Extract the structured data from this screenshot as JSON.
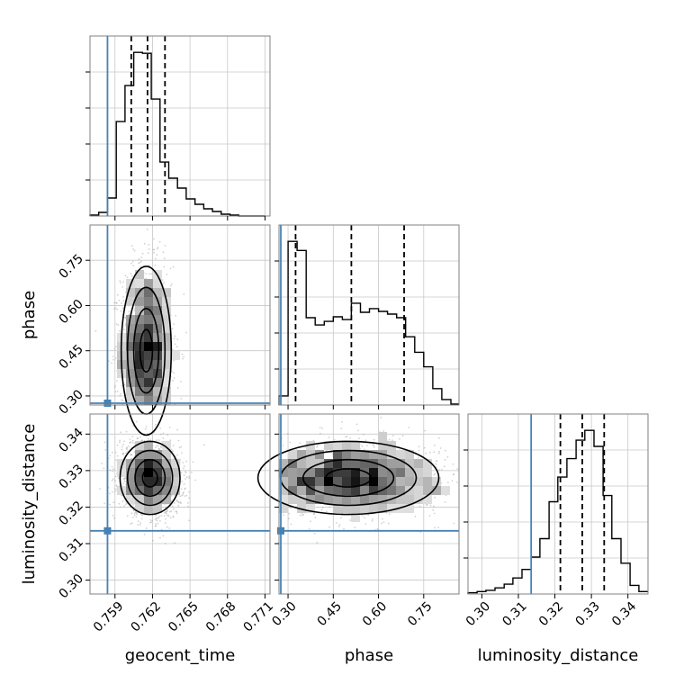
{
  "chart_data": {
    "type": "corner",
    "title": "",
    "parameters": [
      "geocent_time",
      "phase",
      "luminosity_distance"
    ],
    "axis_labels": {
      "x": [
        "geocent_time",
        "phase",
        "luminosity_distance"
      ],
      "y": [
        "phase",
        "luminosity_distance"
      ]
    },
    "ranges": {
      "geocent_time": [
        0.757,
        0.7714
      ],
      "phase": [
        0.27,
        0.867
      ],
      "luminosity_distance": [
        0.2962,
        0.3455
      ]
    },
    "ticks": {
      "geocent_time": [
        "0.759",
        "0.762",
        "0.765",
        "0.768",
        "0.771"
      ],
      "phase": [
        "0.30",
        "0.45",
        "0.60",
        "0.75"
      ],
      "luminosity_distance": [
        "0.30",
        "0.31",
        "0.32",
        "0.33",
        "0.34"
      ]
    },
    "tick_values": {
      "geocent_time": [
        0.759,
        0.762,
        0.765,
        0.768,
        0.771
      ],
      "phase": [
        0.3,
        0.45,
        0.6,
        0.75
      ],
      "luminosity_distance": [
        0.3,
        0.31,
        0.32,
        0.33,
        0.34
      ]
    },
    "truths": {
      "geocent_time": 0.7584,
      "phase": 0.276,
      "luminosity_distance": 0.3135
    },
    "quantiles": {
      "geocent_time": [
        0.7603,
        0.7616,
        0.763
      ],
      "phase": [
        0.325,
        0.51,
        0.685
      ],
      "luminosity_distance": [
        0.3215,
        0.3275,
        0.3335
      ]
    },
    "histograms": {
      "geocent_time": {
        "edges": [
          0.757,
          0.7577,
          0.7584,
          0.7591,
          0.7598,
          0.7605,
          0.7612,
          0.7619,
          0.7626,
          0.7633,
          0.764,
          0.7647,
          0.7654,
          0.7661,
          0.7668,
          0.7675,
          0.7682,
          0.7689,
          0.7696,
          0.7703,
          0.771
        ],
        "counts": [
          1,
          4,
          20,
          105,
          145,
          182,
          181,
          130,
          60,
          42,
          31,
          19,
          13,
          8,
          5,
          2,
          1,
          0,
          0,
          0
        ]
      },
      "phase": {
        "edges": [
          0.27,
          0.3,
          0.33,
          0.36,
          0.39,
          0.42,
          0.45,
          0.48,
          0.51,
          0.54,
          0.57,
          0.6,
          0.63,
          0.66,
          0.69,
          0.72,
          0.75,
          0.78,
          0.81,
          0.84,
          0.867
        ],
        "counts": [
          10,
          180,
          170,
          96,
          88,
          92,
          97,
          94,
          112,
          102,
          106,
          103,
          100,
          96,
          75,
          58,
          42,
          18,
          6,
          1
        ]
      },
      "luminosity_distance": {
        "edges": [
          0.2962,
          0.2987,
          0.3011,
          0.3036,
          0.3061,
          0.3085,
          0.311,
          0.3135,
          0.3159,
          0.3184,
          0.3208,
          0.3233,
          0.3258,
          0.3282,
          0.3307,
          0.3332,
          0.3356,
          0.3381,
          0.3406,
          0.343,
          0.3455
        ],
        "counts": [
          1,
          2,
          3,
          5,
          8,
          13,
          20,
          30,
          45,
          75,
          95,
          110,
          125,
          133,
          120,
          80,
          45,
          25,
          7,
          2
        ]
      }
    },
    "samples_2d": [
      {
        "x": "geocent_time",
        "y": "phase",
        "mean": [
          0.7615,
          0.45
        ],
        "sd": [
          0.001,
          0.14
        ],
        "corr": 0.0
      },
      {
        "x": "geocent_time",
        "y": "luminosity_distance",
        "mean": [
          0.7618,
          0.328
        ],
        "sd": [
          0.0012,
          0.005
        ],
        "corr": -0.1
      },
      {
        "x": "phase",
        "y": "luminosity_distance",
        "mean": [
          0.5,
          0.328
        ],
        "sd": [
          0.15,
          0.005
        ],
        "corr": 0.0
      }
    ]
  }
}
